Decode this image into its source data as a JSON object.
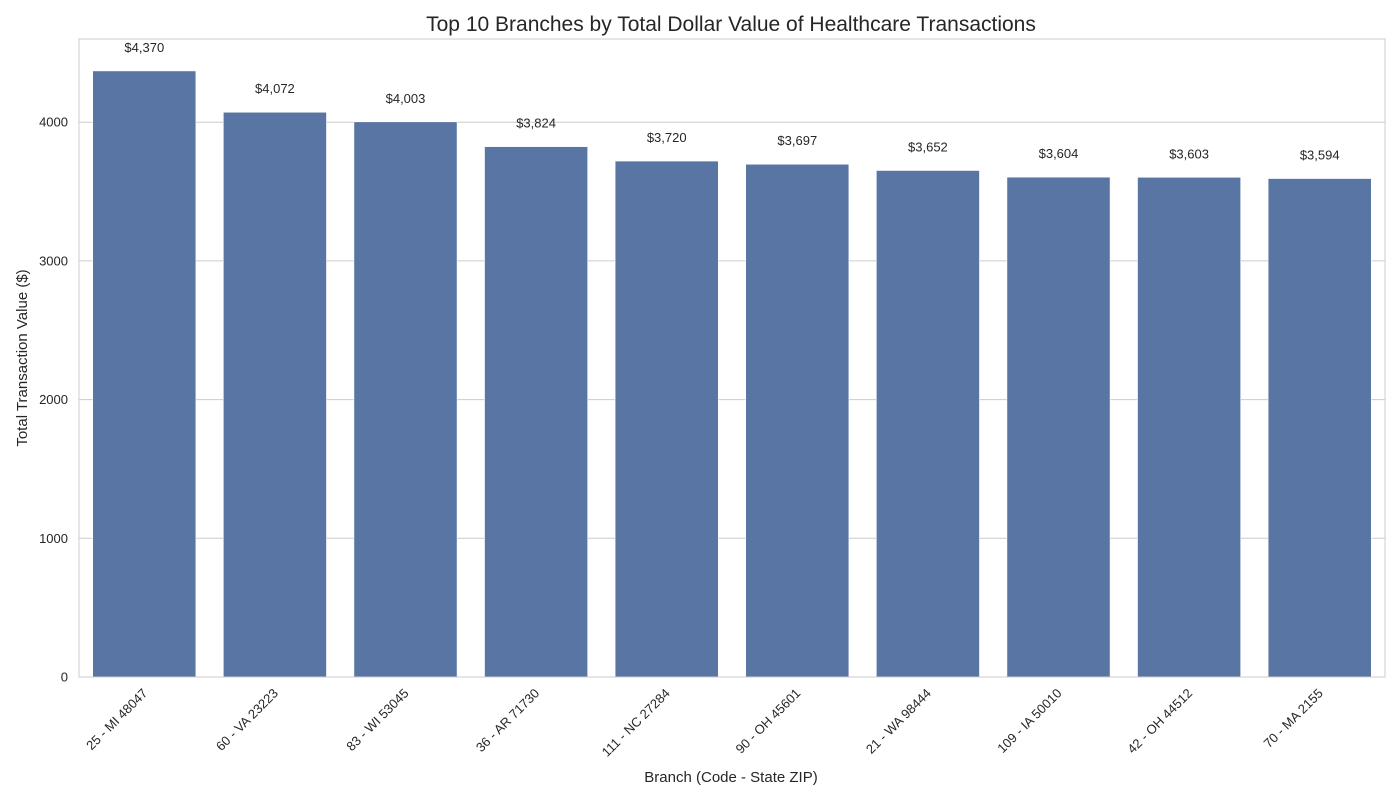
{
  "chart_data": {
    "type": "bar",
    "title": "Top 10 Branches by Total Dollar Value of Healthcare Transactions",
    "xlabel": "Branch (Code - State ZIP)",
    "ylabel": "Total Transaction Value ($)",
    "categories": [
      "25 - MI 48047",
      "60 - VA 23223",
      "83 - WI 53045",
      "36 - AR 71730",
      "111 - NC 27284",
      "90 - OH 45601",
      "21 - WA 98444",
      "109 - IA 50010",
      "42 - OH 44512",
      "70 - MA 2155"
    ],
    "values": [
      4370,
      4072,
      4003,
      3824,
      3720,
      3697,
      3652,
      3604,
      3603,
      3594
    ],
    "data_labels": [
      "$4,370",
      "$4,072",
      "$4,003",
      "$3,824",
      "$3,720",
      "$3,697",
      "$3,652",
      "$3,604",
      "$3,603",
      "$3,594"
    ],
    "yticks": [
      0,
      1000,
      2000,
      3000,
      4000
    ],
    "ytick_labels": [
      "0",
      "1000",
      "2000",
      "3000",
      "4000"
    ],
    "ylim": [
      0,
      4600
    ],
    "grid": "horizontal",
    "legend": "none",
    "bar_color": "#5975a4",
    "grid_color": "#cccccc",
    "frame_color": "#cccccc"
  }
}
